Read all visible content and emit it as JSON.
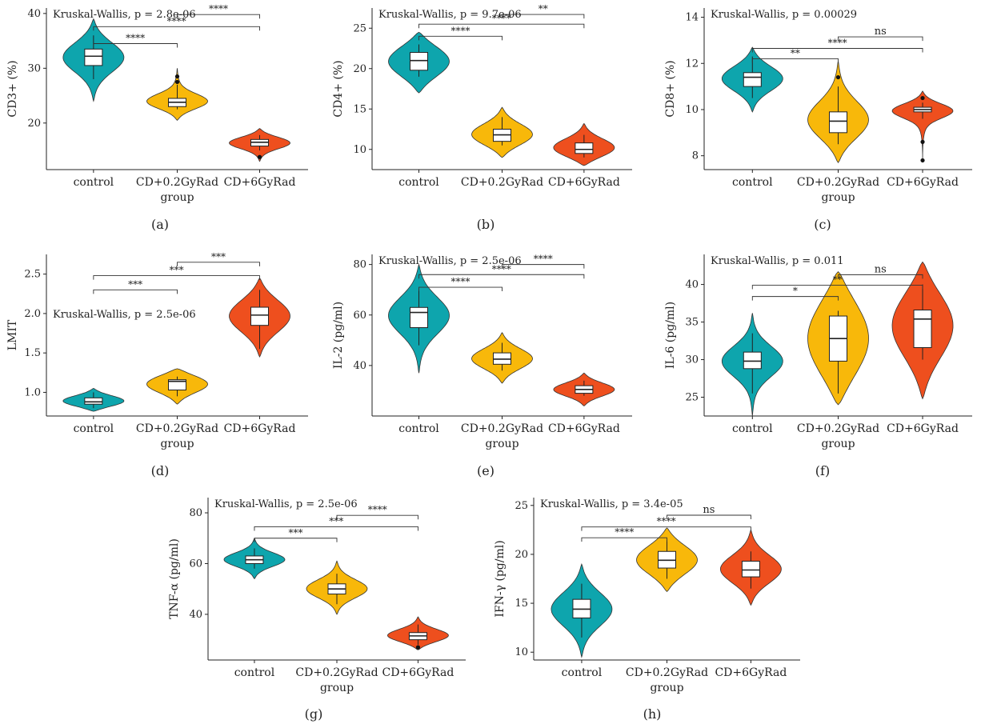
{
  "figure": {
    "groups": [
      "control",
      "CD+0.2GyRad",
      "CD+6GyRad"
    ],
    "xlabel": "group"
  },
  "colors": {
    "control": "#0ea5ad",
    "CD+0.2GyRad": "#f8b80a",
    "CD+6GyRad": "#ee4f1e"
  },
  "chart_data": [
    {
      "type": "violin",
      "panel_label": "(a)",
      "ylabel": "CD3+ (%)",
      "xlabel": "group",
      "stats_text": "Kruskal-Wallis, p = 2.8e-06",
      "ylim": [
        11.5,
        41
      ],
      "yticks": [
        20,
        30,
        40
      ],
      "categories": [
        "control",
        "CD+0.2GyRad",
        "CD+6GyRad"
      ],
      "series": [
        {
          "name": "control",
          "min": 28,
          "q1": 30.5,
          "median": 32.2,
          "q3": 33.5,
          "max": 36,
          "vmin": 24,
          "vmax": 39,
          "outliers": []
        },
        {
          "name": "CD+0.2GyRad",
          "min": 22.5,
          "q1": 23,
          "median": 23.8,
          "q3": 24.5,
          "max": 27,
          "vmin": 20.5,
          "vmax": 30,
          "outliers": [
            27.5,
            28.5
          ]
        },
        {
          "name": "CD+6GyRad",
          "min": 15,
          "q1": 15.8,
          "median": 16.5,
          "q3": 17,
          "max": 17.8,
          "vmin": 13,
          "vmax": 19,
          "outliers": [
            13.8
          ]
        }
      ],
      "comparisons": [
        {
          "from": 0,
          "to": 1,
          "y": 34.5,
          "label": "****"
        },
        {
          "from": 0,
          "to": 2,
          "y": 37.6,
          "label": "****"
        },
        {
          "from": 1,
          "to": 2,
          "y": 39.8,
          "label": "****"
        }
      ]
    },
    {
      "type": "violin",
      "panel_label": "(b)",
      "ylabel": "CD4+ (%)",
      "xlabel": "",
      "stats_text": "Kruskal-Wallis, p = 9.7e-06",
      "ylim": [
        7.5,
        27.5
      ],
      "yticks": [
        10,
        15,
        20,
        25
      ],
      "categories": [
        "control",
        "CD+0.2GyRad",
        "CD+6GyRad"
      ],
      "series": [
        {
          "name": "control",
          "min": 19,
          "q1": 19.8,
          "median": 21,
          "q3": 22,
          "max": 23,
          "vmin": 17,
          "vmax": 24.5,
          "outliers": []
        },
        {
          "name": "CD+0.2GyRad",
          "min": 10.5,
          "q1": 11,
          "median": 11.8,
          "q3": 12.5,
          "max": 14,
          "vmin": 9,
          "vmax": 15.2,
          "outliers": []
        },
        {
          "name": "CD+6GyRad",
          "min": 9,
          "q1": 9.5,
          "median": 10,
          "q3": 10.8,
          "max": 11.8,
          "vmin": 8,
          "vmax": 13.2,
          "outliers": []
        }
      ],
      "comparisons": [
        {
          "from": 0,
          "to": 1,
          "y": 24,
          "label": "****"
        },
        {
          "from": 0,
          "to": 2,
          "y": 25.5,
          "label": "****"
        },
        {
          "from": 1,
          "to": 2,
          "y": 26.7,
          "label": "**"
        }
      ]
    },
    {
      "type": "violin",
      "panel_label": "(c)",
      "ylabel": "CD8+ (%)",
      "xlabel": "group",
      "stats_text": "Kruskal-Wallis, p = 0.00029",
      "ylim": [
        7.4,
        14.4
      ],
      "yticks": [
        8,
        10,
        12,
        14
      ],
      "categories": [
        "control",
        "CD+0.2GyRad",
        "CD+6GyRad"
      ],
      "series": [
        {
          "name": "control",
          "min": 10.5,
          "q1": 11,
          "median": 11.4,
          "q3": 11.6,
          "max": 12.3,
          "vmin": 9.9,
          "vmax": 12.7,
          "outliers": []
        },
        {
          "name": "CD+0.2GyRad",
          "min": 8.5,
          "q1": 9,
          "median": 9.5,
          "q3": 9.9,
          "max": 11,
          "vmin": 7.7,
          "vmax": 12.1,
          "outliers": [
            11.4
          ]
        },
        {
          "name": "CD+6GyRad",
          "min": 9.6,
          "q1": 9.9,
          "median": 10,
          "q3": 10.1,
          "max": 10.3,
          "vmin": 7.7,
          "vmax": 10.8,
          "outliers": [
            10.5,
            8.6,
            7.8
          ]
        }
      ],
      "comparisons": [
        {
          "from": 0,
          "to": 1,
          "y": 12.2,
          "label": "**"
        },
        {
          "from": 0,
          "to": 2,
          "y": 12.65,
          "label": "****"
        },
        {
          "from": 1,
          "to": 2,
          "y": 13.15,
          "label": "ns"
        }
      ]
    },
    {
      "type": "violin",
      "panel_label": "(d)",
      "ylabel": "LMIT",
      "xlabel": "group",
      "stats_text": "Kruskal-Wallis, p = 2.5e-06",
      "ylim": [
        0.7,
        2.75
      ],
      "yticks": [
        1.0,
        1.5,
        2.0,
        2.5
      ],
      "categories": [
        "control",
        "CD+0.2GyRad",
        "CD+6GyRad"
      ],
      "series": [
        {
          "name": "control",
          "min": 0.8,
          "q1": 0.85,
          "median": 0.88,
          "q3": 0.93,
          "max": 1.0,
          "vmin": 0.76,
          "vmax": 1.05,
          "outliers": []
        },
        {
          "name": "CD+0.2GyRad",
          "min": 0.95,
          "q1": 1.03,
          "median": 1.14,
          "q3": 1.16,
          "max": 1.2,
          "vmin": 0.85,
          "vmax": 1.3,
          "outliers": []
        },
        {
          "name": "CD+6GyRad",
          "min": 1.55,
          "q1": 1.85,
          "median": 1.98,
          "q3": 2.08,
          "max": 2.3,
          "vmin": 1.45,
          "vmax": 2.45,
          "outliers": []
        }
      ],
      "comparisons": [
        {
          "from": 0,
          "to": 1,
          "y": 2.3,
          "label": "***"
        },
        {
          "from": 0,
          "to": 2,
          "y": 2.48,
          "label": "***"
        },
        {
          "from": 1,
          "to": 2,
          "y": 2.65,
          "label": "***"
        }
      ]
    },
    {
      "type": "violin",
      "panel_label": "(e)",
      "ylabel": "IL-2 (pg/ml)",
      "xlabel": "group",
      "stats_text": "Kruskal-Wallis, p = 2.5e-06",
      "ylim": [
        20,
        84
      ],
      "yticks": [
        40,
        60,
        80
      ],
      "categories": [
        "control",
        "CD+0.2GyRad",
        "CD+6GyRad"
      ],
      "series": [
        {
          "name": "control",
          "min": 48,
          "q1": 55,
          "median": 61,
          "q3": 63,
          "max": 70,
          "vmin": 37,
          "vmax": 80,
          "outliers": []
        },
        {
          "name": "CD+0.2GyRad",
          "min": 38,
          "q1": 40.5,
          "median": 42.5,
          "q3": 45,
          "max": 49,
          "vmin": 33,
          "vmax": 53,
          "outliers": []
        },
        {
          "name": "CD+6GyRad",
          "min": 28,
          "q1": 29,
          "median": 30.5,
          "q3": 32,
          "max": 34,
          "vmin": 24,
          "vmax": 37,
          "outliers": []
        }
      ],
      "comparisons": [
        {
          "from": 0,
          "to": 1,
          "y": 71,
          "label": "****"
        },
        {
          "from": 0,
          "to": 2,
          "y": 76,
          "label": "****"
        },
        {
          "from": 1,
          "to": 2,
          "y": 80,
          "label": "****"
        }
      ]
    },
    {
      "type": "violin",
      "panel_label": "(f)",
      "ylabel": "IL-6 (pg/ml)",
      "xlabel": "group",
      "stats_text": "Kruskal-Wallis, p = 0.011",
      "ylim": [
        22.5,
        44
      ],
      "yticks": [
        25,
        30,
        35,
        40
      ],
      "categories": [
        "control",
        "CD+0.2GyRad",
        "CD+6GyRad"
      ],
      "series": [
        {
          "name": "control",
          "min": 25.5,
          "q1": 28.8,
          "median": 29.8,
          "q3": 31,
          "max": 33.5,
          "vmin": 22.5,
          "vmax": 36.2,
          "outliers": []
        },
        {
          "name": "CD+0.2GyRad",
          "min": 25.5,
          "q1": 29.8,
          "median": 32.8,
          "q3": 35.8,
          "max": 36.5,
          "vmin": 24,
          "vmax": 41.7,
          "outliers": []
        },
        {
          "name": "CD+6GyRad",
          "min": 30,
          "q1": 31.6,
          "median": 35.4,
          "q3": 36.6,
          "max": 40,
          "vmin": 24.8,
          "vmax": 43,
          "outliers": []
        }
      ],
      "comparisons": [
        {
          "from": 0,
          "to": 1,
          "y": 38.4,
          "label": "*"
        },
        {
          "from": 0,
          "to": 2,
          "y": 39.9,
          "label": "**"
        },
        {
          "from": 1,
          "to": 2,
          "y": 41.3,
          "label": "ns"
        }
      ]
    },
    {
      "type": "violin",
      "panel_label": "(g)",
      "ylabel": "TNF-α (pg/ml)",
      "xlabel": "group",
      "stats_text": "Kruskal-Wallis, p = 2.5e-06",
      "ylim": [
        22,
        86
      ],
      "yticks": [
        40,
        60,
        80
      ],
      "categories": [
        "control",
        "CD+0.2GyRad",
        "CD+6GyRad"
      ],
      "series": [
        {
          "name": "control",
          "min": 58,
          "q1": 60,
          "median": 61.5,
          "q3": 63,
          "max": 66,
          "vmin": 54,
          "vmax": 70,
          "outliers": []
        },
        {
          "name": "CD+0.2GyRad",
          "min": 44,
          "q1": 48,
          "median": 50,
          "q3": 52,
          "max": 56,
          "vmin": 40,
          "vmax": 61,
          "outliers": []
        },
        {
          "name": "CD+6GyRad",
          "min": 28,
          "q1": 30,
          "median": 31.5,
          "q3": 32.8,
          "max": 36,
          "vmin": 26,
          "vmax": 39,
          "outliers": [
            27
          ]
        }
      ],
      "comparisons": [
        {
          "from": 0,
          "to": 1,
          "y": 70,
          "label": "***"
        },
        {
          "from": 0,
          "to": 2,
          "y": 74.5,
          "label": "***"
        },
        {
          "from": 1,
          "to": 2,
          "y": 79,
          "label": "****"
        }
      ]
    },
    {
      "type": "violin",
      "panel_label": "(h)",
      "ylabel": "IFN-γ (pg/ml)",
      "xlabel": "group",
      "stats_text": "Kruskal-Wallis, p = 3.4e-05",
      "ylim": [
        9.2,
        25.8
      ],
      "yticks": [
        10,
        15,
        20,
        25
      ],
      "categories": [
        "control",
        "CD+0.2GyRad",
        "CD+6GyRad"
      ],
      "series": [
        {
          "name": "control",
          "min": 11.5,
          "q1": 13.5,
          "median": 14.4,
          "q3": 15.4,
          "max": 17,
          "vmin": 9.5,
          "vmax": 19,
          "outliers": []
        },
        {
          "name": "CD+0.2GyRad",
          "min": 17.5,
          "q1": 18.6,
          "median": 19.4,
          "q3": 20.3,
          "max": 21.5,
          "vmin": 16.2,
          "vmax": 22.7,
          "outliers": []
        },
        {
          "name": "CD+6GyRad",
          "min": 16.5,
          "q1": 17.7,
          "median": 18.4,
          "q3": 19.3,
          "max": 20.3,
          "vmin": 14.8,
          "vmax": 22.5,
          "outliers": []
        }
      ],
      "comparisons": [
        {
          "from": 0,
          "to": 1,
          "y": 21.7,
          "label": "****"
        },
        {
          "from": 0,
          "to": 2,
          "y": 22.8,
          "label": "****"
        },
        {
          "from": 1,
          "to": 2,
          "y": 24,
          "label": "ns"
        }
      ]
    }
  ]
}
